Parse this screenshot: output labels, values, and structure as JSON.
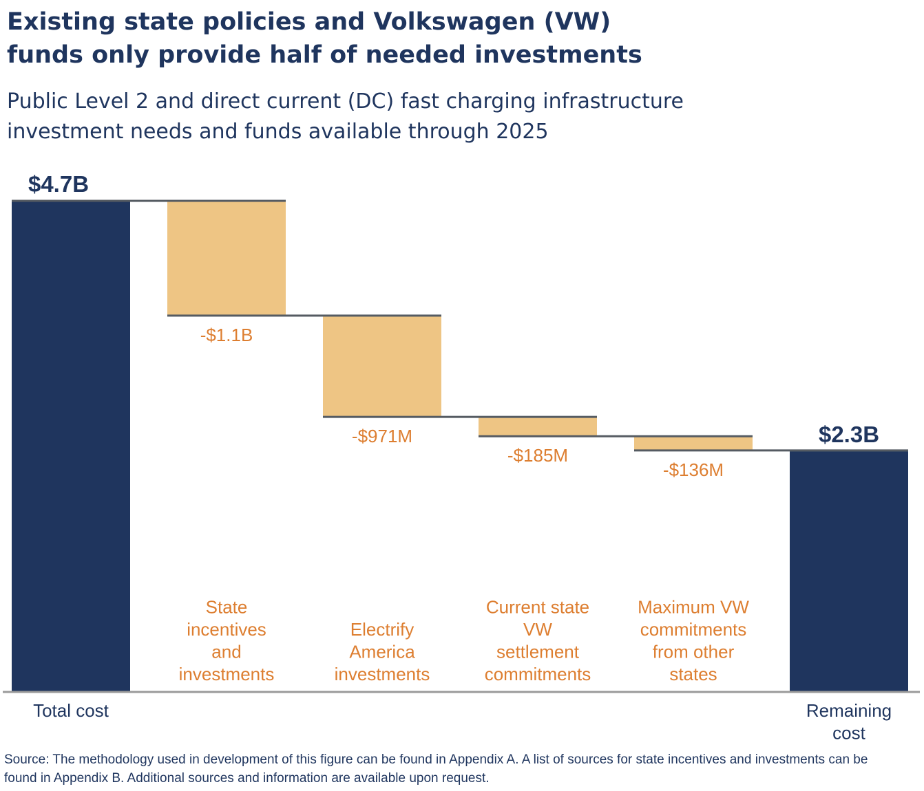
{
  "title": "Existing state policies and Volkswagen (VW) funds only provide half of needed investments",
  "subtitle": "Public Level 2 and direct current (DC) fast charging infrastructure investment needs and funds available through 2025",
  "source": "Source: The methodology used in development of this figure can be found in Appendix A. A list of sources for state incentives and investments can be found in Appendix B. Additional sources and information are available upon request.",
  "colors": {
    "total": "#1f355e",
    "decrease": "#eec584",
    "label_decrease": "#dd7e30",
    "connector": "#555b62",
    "axis": "#9a9a9a"
  },
  "chart_data": {
    "type": "bar",
    "subtype": "waterfall",
    "unit": "billion USD",
    "ylim": [
      0,
      4.7
    ],
    "categories": [
      {
        "lines": [
          "Total cost"
        ]
      },
      {
        "lines": [
          "State",
          "incentives",
          "and",
          "investments"
        ]
      },
      {
        "lines": [
          "Electrify",
          "America",
          "investments"
        ]
      },
      {
        "lines": [
          "Current state",
          "VW",
          "settlement",
          "commitments"
        ]
      },
      {
        "lines": [
          "Maximum VW",
          "commitments",
          "from other",
          "states"
        ]
      },
      {
        "lines": [
          "Remaining",
          "cost"
        ]
      }
    ],
    "values": [
      4.7,
      -1.1,
      -0.971,
      -0.185,
      -0.136,
      2.3
    ],
    "kinds": [
      "total",
      "decrease",
      "decrease",
      "decrease",
      "decrease",
      "total"
    ],
    "value_labels": [
      "$4.7B",
      "-$1.1B",
      "-$971M",
      "-$185M",
      "-$136M",
      "$2.3B"
    ],
    "grid": false,
    "legend": "none"
  }
}
